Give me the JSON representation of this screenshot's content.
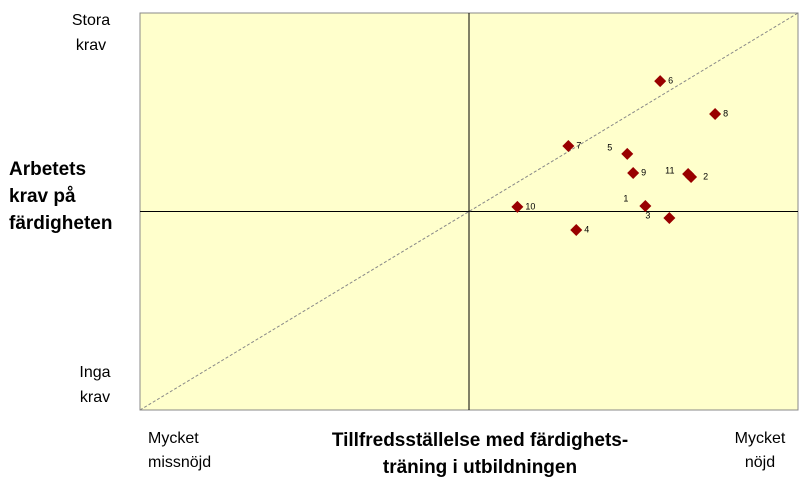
{
  "chart_data": {
    "type": "scatter",
    "y_top_label": [
      "Stora",
      "krav"
    ],
    "y_bottom_label": [
      "Inga",
      "krav"
    ],
    "y_axis_label": [
      "Arbetets",
      "krav på",
      "färdigheten"
    ],
    "x_axis_label": [
      "Tillfredsställelse med färdighets-",
      "träning i utbildningen"
    ],
    "x_left_label": [
      "Mycket",
      "missnöjd"
    ],
    "x_right_label": [
      "Mycket",
      "nöjd"
    ],
    "color": "#990000",
    "xlim": [
      -1,
      1
    ],
    "ylim": [
      -1,
      1
    ],
    "labels": [
      "1",
      "2",
      "3",
      "4",
      "5",
      "6",
      "7",
      "8",
      "9",
      "10",
      "11"
    ],
    "x": [
      0.536,
      0.675,
      0.609,
      0.326,
      0.481,
      0.581,
      0.302,
      0.748,
      0.499,
      0.147,
      0.666
    ],
    "y": [
      0.028,
      0.174,
      -0.033,
      -0.093,
      0.29,
      0.657,
      0.33,
      0.491,
      0.194,
      0.023,
      0.189
    ]
  }
}
